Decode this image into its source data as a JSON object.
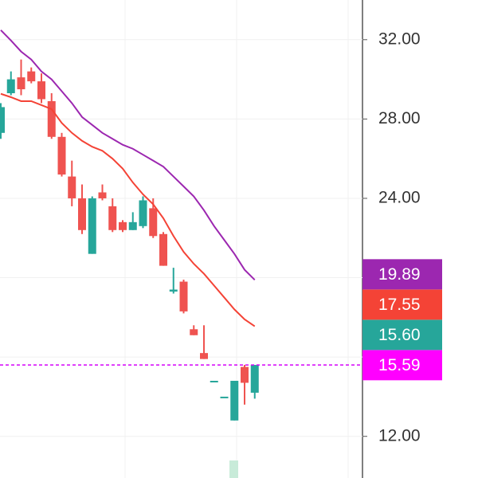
{
  "chart_data": {
    "type": "candlestick",
    "ylim": [
      9.9,
      34.0
    ],
    "yticks": [
      {
        "value": 12,
        "label": "12.00"
      },
      {
        "value": 24,
        "label": "24.00"
      },
      {
        "value": 28,
        "label": "28.00"
      },
      {
        "value": 32,
        "label": "32.00"
      }
    ],
    "minor_grid": [
      16,
      20
    ],
    "up_color": "#26a69a",
    "down_color": "#ef5350",
    "candles": [
      {
        "open": 27.3,
        "high": 28.8,
        "low": 27.0,
        "close": 28.6
      },
      {
        "open": 29.3,
        "high": 30.4,
        "low": 29.2,
        "close": 30.0
      },
      {
        "open": 30.1,
        "high": 31.0,
        "low": 29.2,
        "close": 29.5
      },
      {
        "open": 30.4,
        "high": 30.6,
        "low": 29.8,
        "close": 29.9
      },
      {
        "open": 29.9,
        "high": 30.3,
        "low": 28.8,
        "close": 29.0
      },
      {
        "open": 28.9,
        "high": 29.3,
        "low": 27.0,
        "close": 27.1
      },
      {
        "open": 27.1,
        "high": 27.3,
        "low": 25.1,
        "close": 25.2
      },
      {
        "open": 25.1,
        "high": 25.9,
        "low": 23.6,
        "close": 24.0
      },
      {
        "open": 24.0,
        "high": 24.7,
        "low": 22.2,
        "close": 22.4
      },
      {
        "open": 21.2,
        "high": 24.1,
        "low": 21.2,
        "close": 24.0
      },
      {
        "open": 24.3,
        "high": 24.7,
        "low": 23.9,
        "close": 24.0
      },
      {
        "open": 23.6,
        "high": 24.0,
        "low": 22.3,
        "close": 22.4
      },
      {
        "open": 22.8,
        "high": 22.9,
        "low": 22.3,
        "close": 22.4
      },
      {
        "open": 22.4,
        "high": 23.3,
        "low": 22.4,
        "close": 22.8
      },
      {
        "open": 22.6,
        "high": 24.1,
        "low": 22.5,
        "close": 23.9
      },
      {
        "open": 23.5,
        "high": 24.0,
        "low": 22.0,
        "close": 22.1
      },
      {
        "open": 22.2,
        "high": 22.3,
        "low": 20.6,
        "close": 20.6
      },
      {
        "open": 19.3,
        "high": 20.5,
        "low": 19.2,
        "close": 19.4
      },
      {
        "open": 19.8,
        "high": 19.9,
        "low": 18.2,
        "close": 18.3
      },
      {
        "open": 17.4,
        "high": 17.6,
        "low": 17.1,
        "close": 17.1
      },
      {
        "open": 16.2,
        "high": 17.6,
        "low": 15.9,
        "close": 15.9
      },
      {
        "open": 14.8,
        "high": 14.8,
        "low": 14.8,
        "close": 14.8
      },
      {
        "open": 14.0,
        "high": 14.0,
        "low": 14.0,
        "close": 14.0
      },
      {
        "open": 12.8,
        "high": 14.8,
        "low": 12.8,
        "close": 14.8
      },
      {
        "open": 15.5,
        "high": 15.6,
        "low": 13.6,
        "close": 14.7
      },
      {
        "open": 14.2,
        "high": 15.6,
        "low": 13.9,
        "close": 15.6
      }
    ],
    "series": [
      {
        "color": "#9c27b0",
        "values": [
          32.48,
          31.96,
          31.4,
          31.0,
          30.4,
          30.0,
          29.4,
          28.8,
          28.1,
          27.7,
          27.3,
          27.0,
          26.7,
          26.5,
          26.2,
          25.9,
          25.6,
          25.1,
          24.6,
          24.1,
          23.4,
          22.6,
          21.9,
          21.2,
          20.4,
          19.89
        ]
      },
      {
        "color": "#f44336",
        "values": [
          29.27,
          29.1,
          28.9,
          28.9,
          28.7,
          28.5,
          27.8,
          27.3,
          26.9,
          26.6,
          26.4,
          26.0,
          25.5,
          24.8,
          24.2,
          23.7,
          23.0,
          22.1,
          21.3,
          20.7,
          20.2,
          19.6,
          19.0,
          18.4,
          17.9,
          17.55
        ]
      }
    ],
    "price_line": {
      "value": 15.6,
      "color": "#d500f9"
    },
    "price_labels": [
      {
        "value": 19.89,
        "label": "19.89",
        "color": "#9c27b0"
      },
      {
        "value": 17.55,
        "label": "17.55",
        "color": "#f44336"
      },
      {
        "value": 15.59,
        "label": "15.59",
        "color": "#ff00ff"
      },
      {
        "value": 15.6,
        "label": "15.60",
        "color": "#26a69a"
      }
    ]
  }
}
